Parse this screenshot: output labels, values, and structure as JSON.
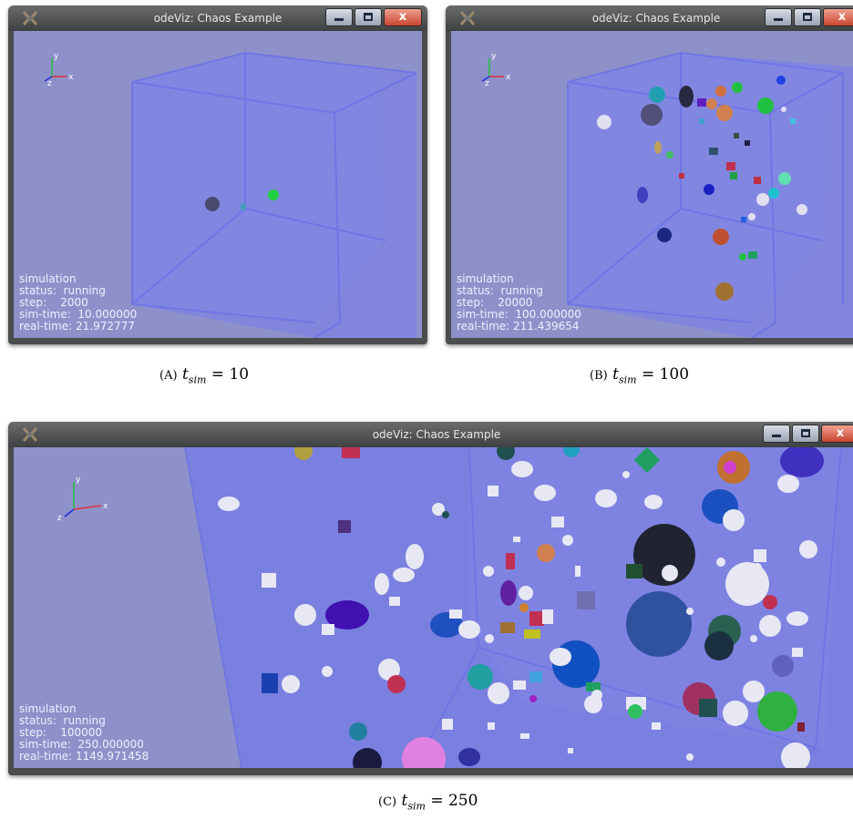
{
  "windows": [
    {
      "title": "odeViz: Chaos Example",
      "hud": {
        "heading": "simulation",
        "status": "status:  running",
        "step": "step:    2000",
        "sim_time": "sim-time:  10.000000",
        "real_time": "real-time: 21.972777"
      }
    },
    {
      "title": "odeViz: Chaos Example",
      "hud": {
        "heading": "simulation",
        "status": "status:  running",
        "step": "step:    20000",
        "sim_time": "sim-time:  100.000000",
        "real_time": "real-time: 211.439654"
      }
    },
    {
      "title": "odeViz: Chaos Example",
      "hud": {
        "heading": "simulation",
        "status": "status:  running",
        "step": "step:    100000",
        "sim_time": "sim-time:  250.000000",
        "real_time": "real-time: 1149.971458"
      }
    }
  ],
  "axes": {
    "x": "x",
    "y": "y",
    "z": "z"
  },
  "window_controls": {
    "close": "x"
  },
  "captions": [
    {
      "letter": "(A)",
      "var": "t",
      "sub": "sim",
      "rest": " = 10"
    },
    {
      "letter": "(B)",
      "var": "t",
      "sub": "sim",
      "rest": " = 100"
    },
    {
      "letter": "(C)",
      "var": "t",
      "sub": "sim",
      "rest": " = 250"
    }
  ],
  "colors": {
    "viewport_bg": "#8e91c9",
    "cube_face": "#7a80e0",
    "hud_text": "#eef0ff",
    "titlebar": "#555759"
  }
}
